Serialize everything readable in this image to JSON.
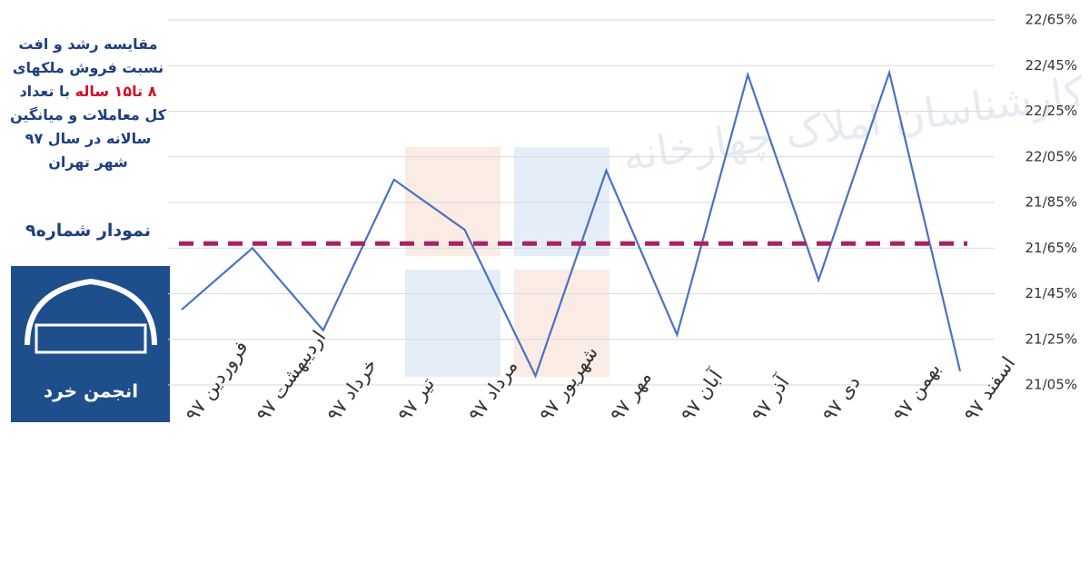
{
  "chart_data": {
    "type": "line",
    "title_parts": [
      "مقایسه رشد و افت نسبت فروش ملکهای ",
      "۸ تا۱۵ ساله",
      " با تعداد کل معاملات و میانگین سالانه در سال ۹۷ شهر تهران"
    ],
    "subtitle": "نمودار شماره۹",
    "annotations": [
      "انجمن خرد",
      "کارشناسان املاک چهارخانه"
    ],
    "categories": [
      "فروردین ۹۷",
      "اردیبهشت ۹۷",
      "خرداد ۹۷",
      "تیر ۹۷",
      "مرداد ۹۷",
      "شهریور ۹۷",
      "مهر ۹۷",
      "آبان ۹۷",
      "آذر ۹۷",
      "دی ۹۷",
      "بهمن ۹۷",
      "اسفند ۹۷"
    ],
    "values": [
      21.38,
      21.65,
      21.29,
      21.95,
      21.73,
      21.09,
      21.99,
      21.27,
      22.41,
      21.51,
      22.42,
      21.11
    ],
    "color": "#4a72c0",
    "average": 21.67,
    "average_color": "#a8245f",
    "ylim": [
      21.05,
      22.65
    ],
    "yticks": [
      {
        "value": 21.05,
        "label": "21/05%"
      },
      {
        "value": 21.25,
        "label": "21/25%"
      },
      {
        "value": 21.45,
        "label": "21/45%"
      },
      {
        "value": 21.65,
        "label": "21/65%"
      },
      {
        "value": 21.85,
        "label": "21/85%"
      },
      {
        "value": 22.05,
        "label": "22/05%"
      },
      {
        "value": 22.25,
        "label": "22/25%"
      },
      {
        "value": 22.45,
        "label": "22/45%"
      },
      {
        "value": 22.65,
        "label": "22/65%"
      }
    ],
    "grid": true
  }
}
